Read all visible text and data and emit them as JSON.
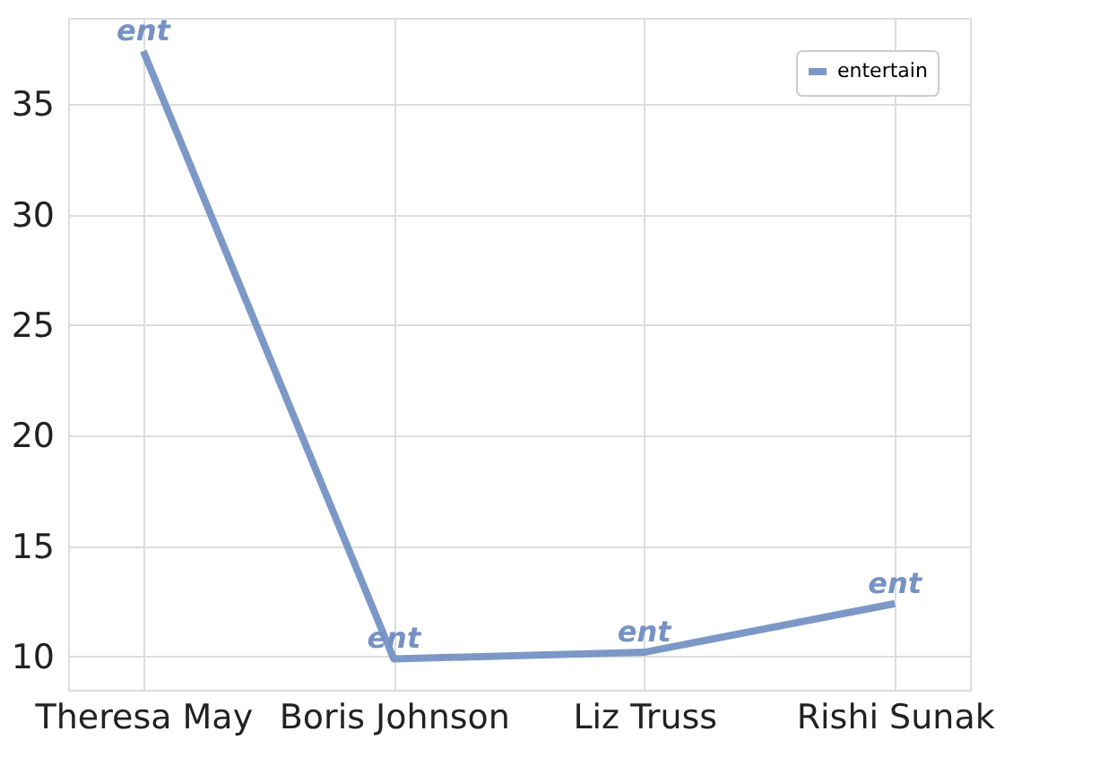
{
  "chart_data": {
    "type": "line",
    "categories": [
      "Theresa May",
      "Boris Johnson",
      "Liz Truss",
      "Rishi Sunak"
    ],
    "series": [
      {
        "name": "entertain",
        "color": "#7592c4",
        "values": [
          37.4,
          9.9,
          10.2,
          12.4
        ]
      }
    ],
    "ylim": [
      8.5,
      38.9
    ],
    "yticks": [
      10,
      15,
      20,
      25,
      30,
      35
    ],
    "grid": true,
    "legend": "top right",
    "line_style": "solid",
    "marker": "none",
    "annotations": [
      {
        "text": "ent",
        "x": "Theresa May",
        "y": 37.4
      },
      {
        "text": "ent",
        "x": "Boris Johnson",
        "y": 9.9
      },
      {
        "text": "ent",
        "x": "Liz Truss",
        "y": 10.2
      },
      {
        "text": "ent",
        "x": "Rishi Sunak",
        "y": 12.4
      }
    ]
  }
}
